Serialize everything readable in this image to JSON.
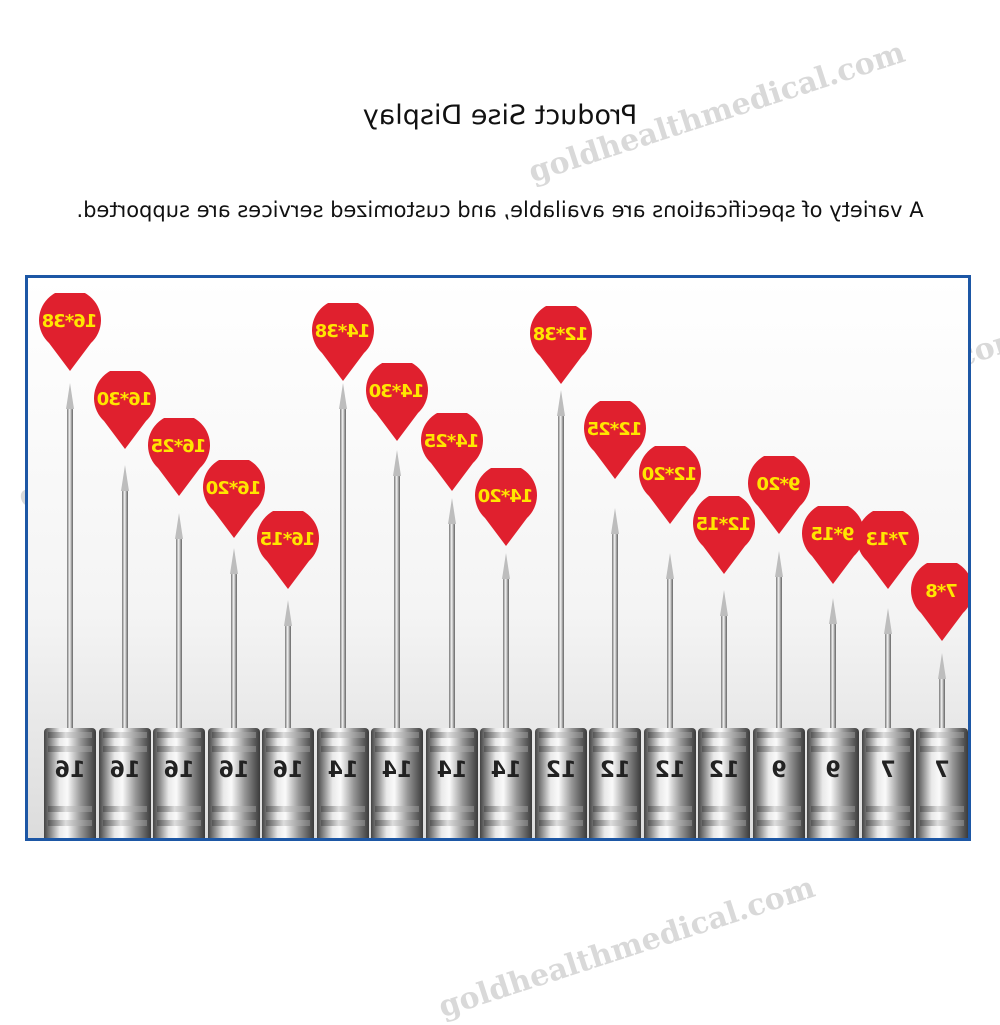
{
  "title": "Product Sise Display",
  "subtitle": "A variety of specifications are available, and customized services are supported.",
  "colors": {
    "pin": "#e0202e",
    "pin_text": "#ffe600",
    "border": "#1d57a5"
  },
  "watermark": "goldhealthmedical.com",
  "needles": [
    {
      "label": "16*38",
      "gauge": "16"
    },
    {
      "label": "16*30",
      "gauge": "16"
    },
    {
      "label": "16*25",
      "gauge": "16"
    },
    {
      "label": "16*20",
      "gauge": "16"
    },
    {
      "label": "16*15",
      "gauge": "16"
    },
    {
      "label": "14*38",
      "gauge": "14"
    },
    {
      "label": "14*30",
      "gauge": "14"
    },
    {
      "label": "14*25",
      "gauge": "14"
    },
    {
      "label": "14*20",
      "gauge": "14"
    },
    {
      "label": "12*38",
      "gauge": "12"
    },
    {
      "label": "12*25",
      "gauge": "12"
    },
    {
      "label": "12*20",
      "gauge": "12"
    },
    {
      "label": "12*15",
      "gauge": "12"
    },
    {
      "label": "9*20",
      "gauge": "9"
    },
    {
      "label": "9*15",
      "gauge": "9"
    },
    {
      "label": "7*13",
      "gauge": "7"
    },
    {
      "label": "7*8",
      "gauge": "7"
    }
  ]
}
